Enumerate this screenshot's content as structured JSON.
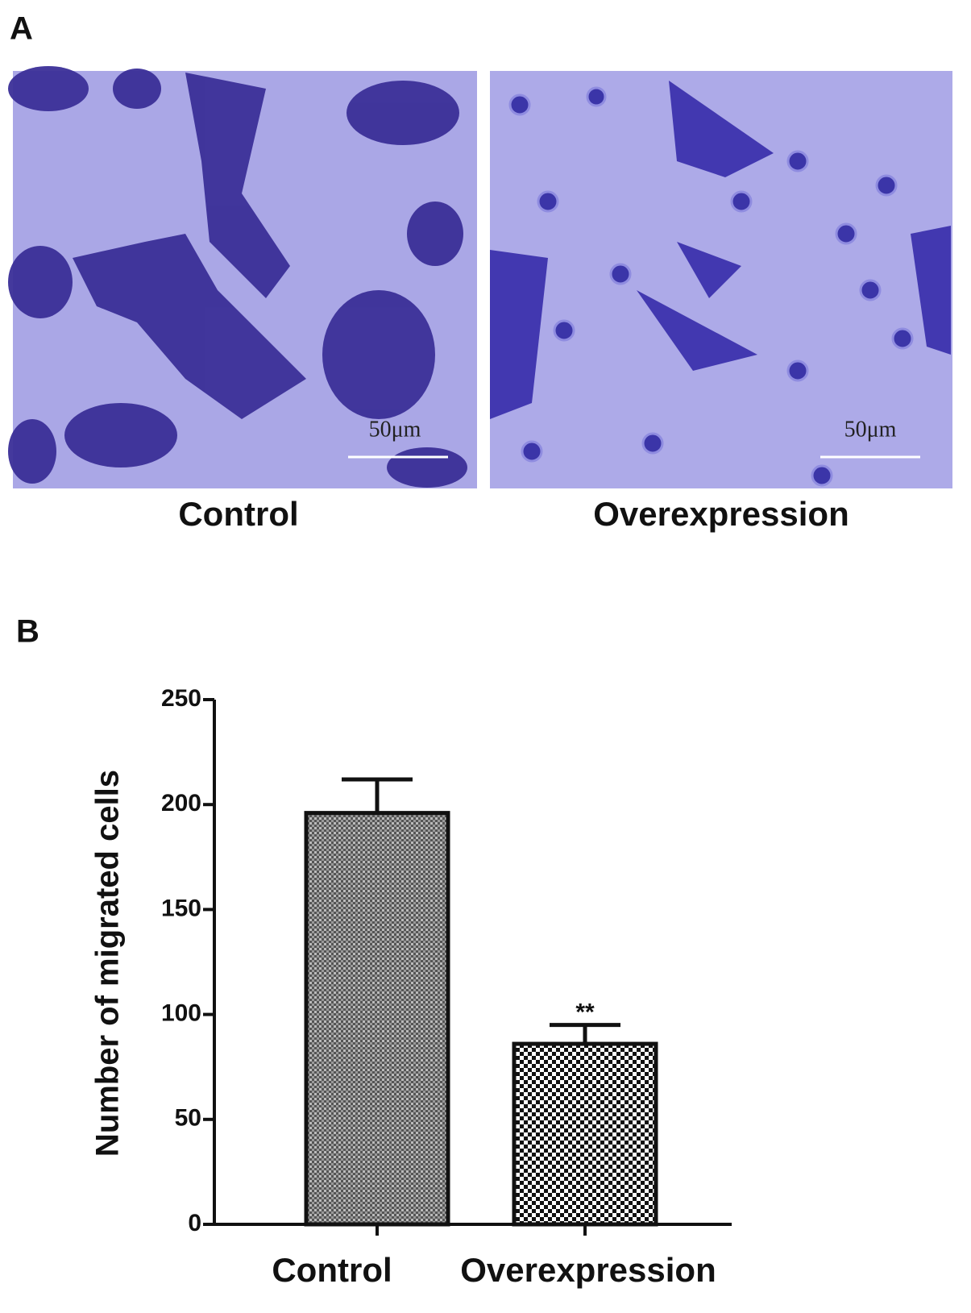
{
  "panels": {
    "a_label": "A",
    "b_label": "B"
  },
  "micrographs": [
    {
      "caption": "Control",
      "scale_bar": "50μm"
    },
    {
      "caption": "Overexpression",
      "scale_bar": "50μm"
    }
  ],
  "chart_data": {
    "type": "bar",
    "ylabel": "Number of migrated cells",
    "categories": [
      "Control",
      "Overexpression"
    ],
    "values": [
      196,
      86
    ],
    "errors": [
      16,
      9
    ],
    "annotation": "**",
    "ylim": [
      0,
      250
    ],
    "yticks": [
      0,
      50,
      100,
      150,
      200,
      250
    ]
  }
}
